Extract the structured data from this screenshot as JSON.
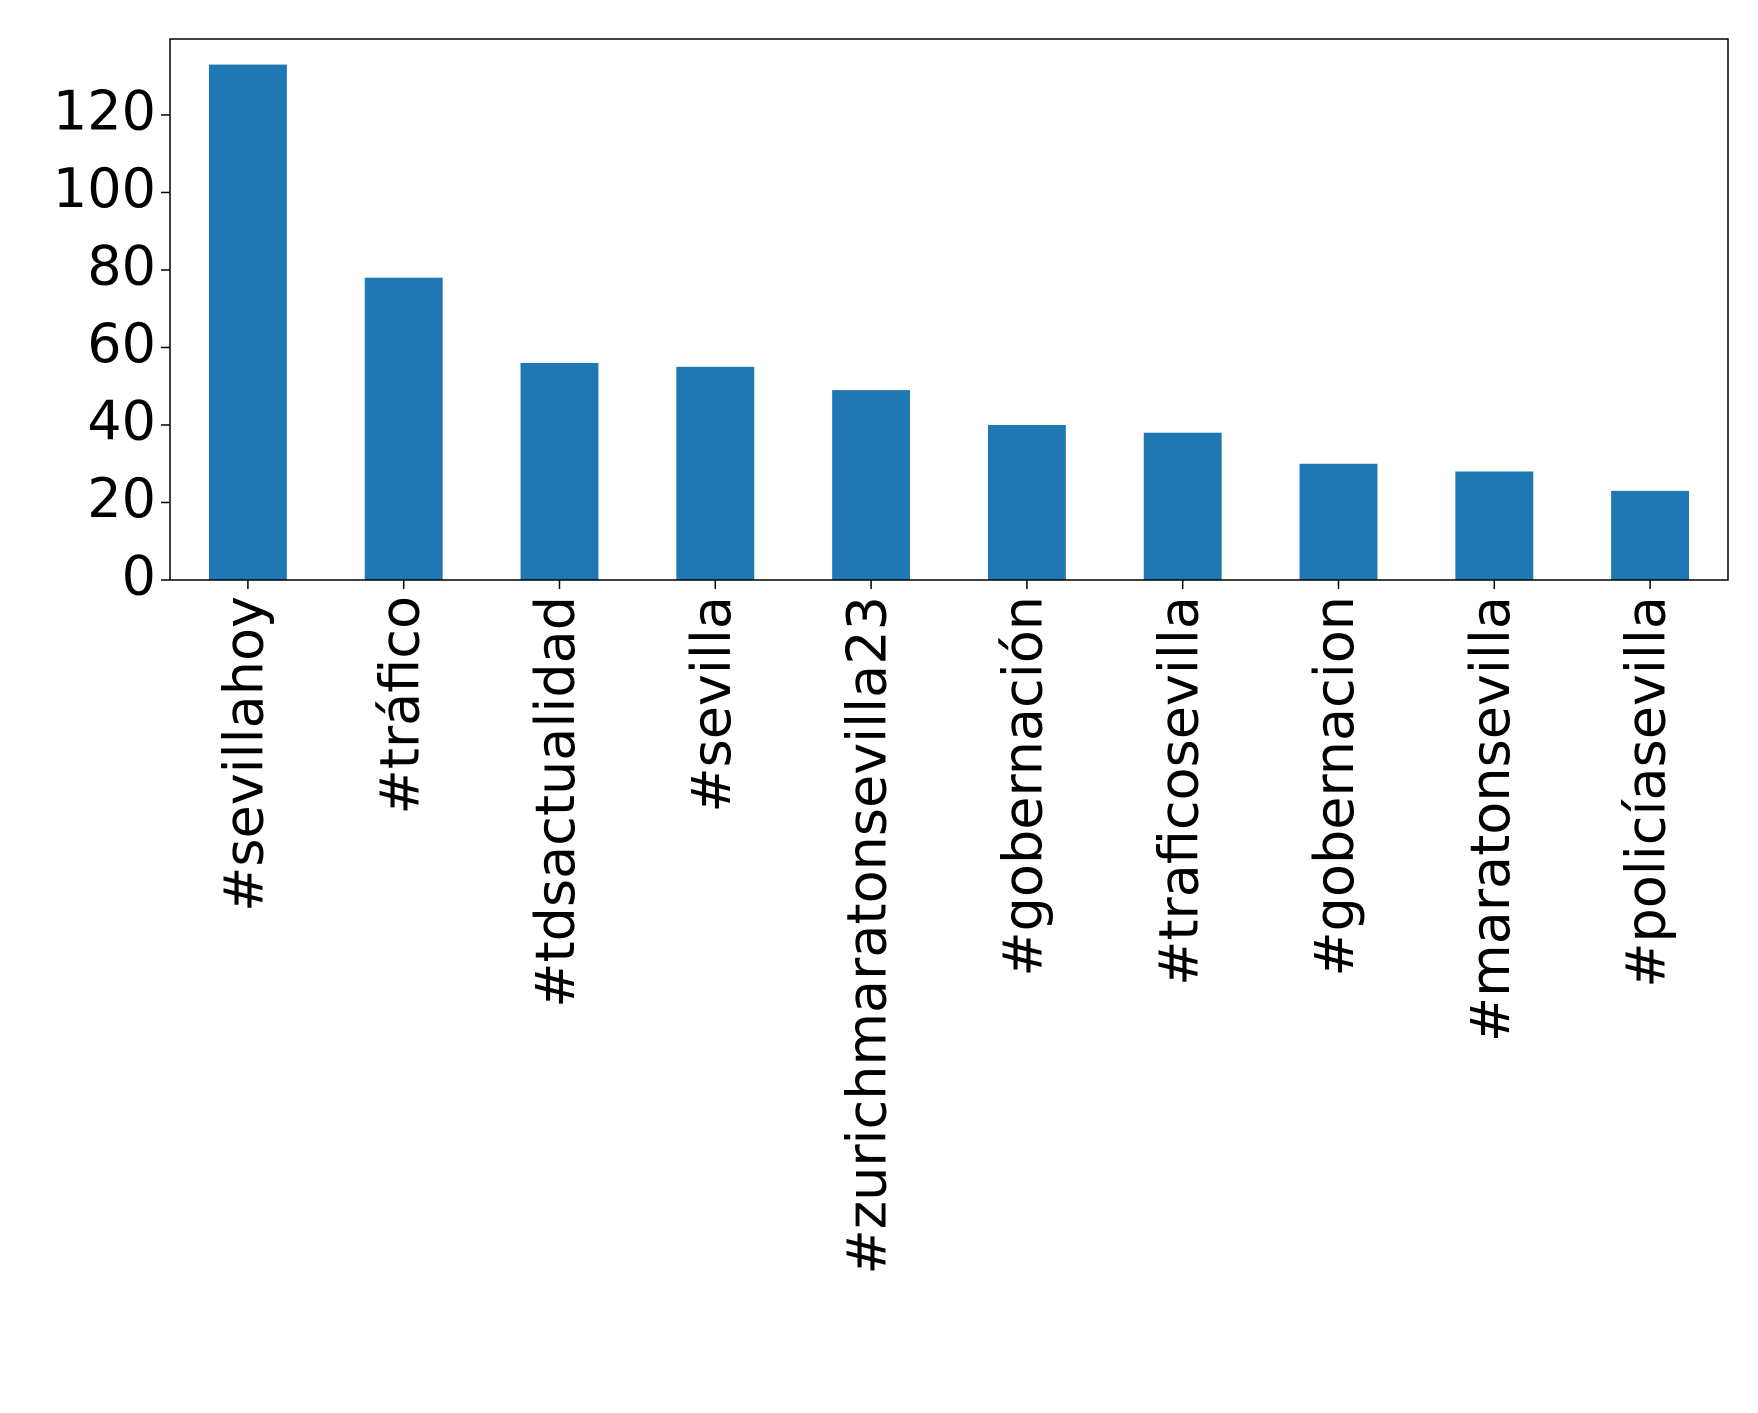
{
  "chart_data": {
    "type": "bar",
    "categories": [
      "#sevillahoy",
      "#tráfico",
      "#tdsactualidad",
      "#sevilla",
      "#zurichmaratonsevilla23",
      "#gobernación",
      "#traficosevilla",
      "#gobernacion",
      "#maratonsevilla",
      "#policíasevilla"
    ],
    "values": [
      133,
      78,
      56,
      55,
      49,
      40,
      38,
      30,
      28,
      23
    ],
    "color": "#1f77b4",
    "ylim": [
      0,
      139.6
    ],
    "yticks": [
      0,
      20,
      40,
      60,
      80,
      100,
      120
    ],
    "grid": false
  }
}
